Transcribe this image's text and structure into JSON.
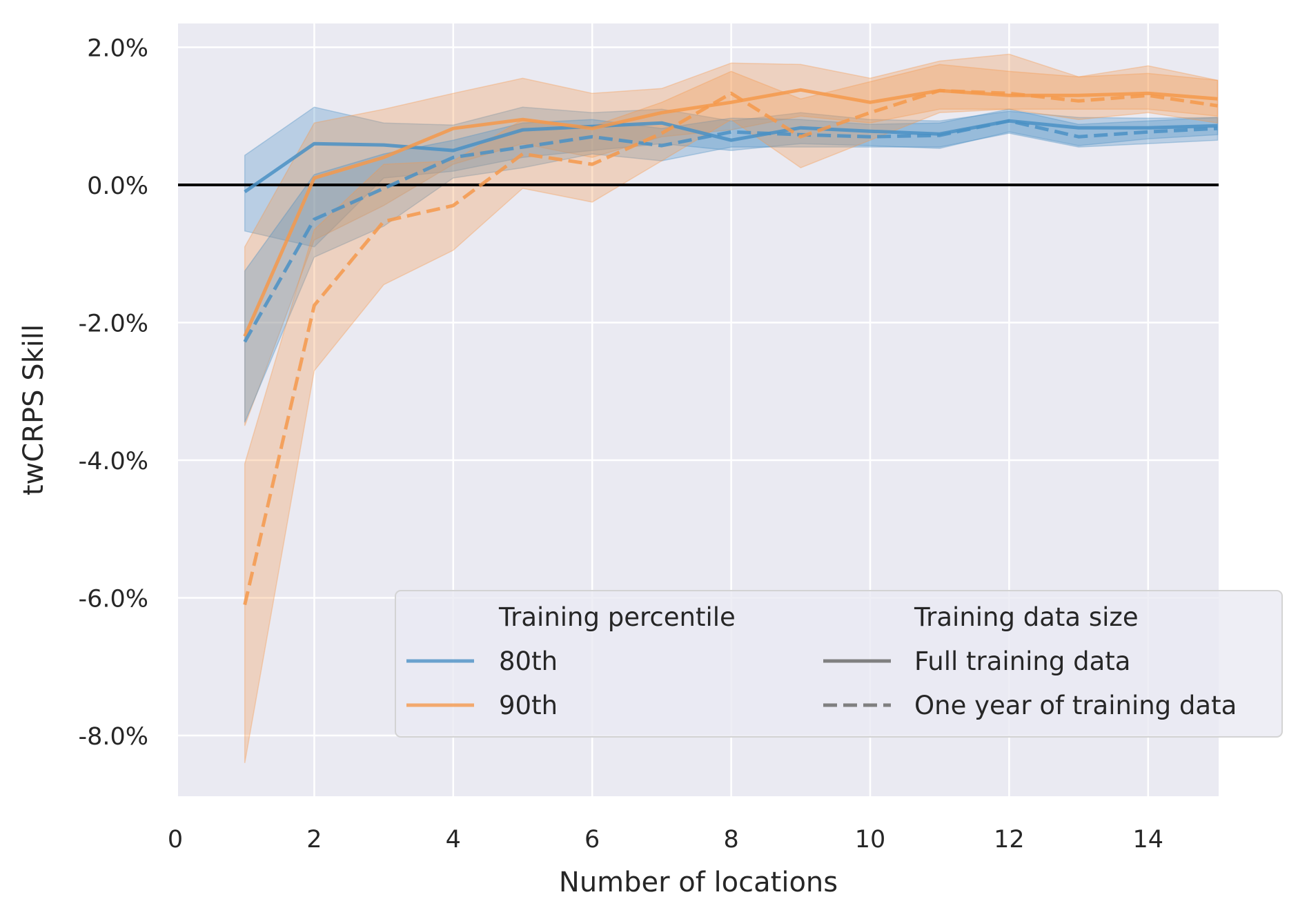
{
  "chart_data": {
    "type": "line",
    "title": "",
    "xlabel": "Number of locations",
    "ylabel": "twCRPS Skill",
    "xlim": [
      0,
      15
    ],
    "ylim": [
      -0.09,
      0.024
    ],
    "x_ticks": [
      0,
      2,
      4,
      6,
      8,
      10,
      12,
      14
    ],
    "x_tick_labels": [
      "0",
      "2",
      "4",
      "6",
      "8",
      "10",
      "12",
      "14"
    ],
    "y_ticks": [
      0.02,
      0.0,
      -0.02,
      -0.04,
      -0.06,
      -0.08
    ],
    "y_tick_labels": [
      "2.0%",
      "0.0%",
      "-2.0%",
      "-4.0%",
      "-6.0%",
      "-8.0%"
    ],
    "grid": true,
    "reference_line": 0.0,
    "legend_placement": "lower-right",
    "legend": {
      "percentile_title": "Training percentile",
      "percentile_items": [
        "80th",
        "90th"
      ],
      "size_title": "Training data size",
      "size_items": [
        "Full training data",
        "One year of training data"
      ]
    },
    "colors": {
      "80th": "#4a90c4",
      "90th": "#f5994b",
      "background": "#eaeaf2",
      "grid": "#ffffff",
      "reference": "#000000",
      "legend_style_line": "#808080"
    },
    "x": [
      1,
      2,
      3,
      4,
      5,
      6,
      7,
      8,
      9,
      10,
      11,
      12,
      13,
      14,
      15
    ],
    "series": [
      {
        "percentile": "80th",
        "data_size": "Full training data",
        "dash": "solid",
        "values": [
          -0.001,
          0.006,
          0.0058,
          0.005,
          0.008,
          0.0085,
          0.009,
          0.0065,
          0.0083,
          0.0078,
          0.0074,
          0.0093,
          0.0083,
          0.0083,
          0.0086
        ],
        "lower": [
          -0.0067,
          -0.009,
          0.001,
          0.002,
          0.004,
          0.005,
          0.006,
          0.005,
          0.006,
          0.0057,
          0.0053,
          0.0077,
          0.0057,
          0.0067,
          0.0073
        ],
        "upper": [
          0.0043,
          0.0113,
          0.009,
          0.0087,
          0.0113,
          0.0105,
          0.011,
          0.0093,
          0.0105,
          0.0095,
          0.0093,
          0.0107,
          0.0098,
          0.0097,
          0.0098
        ]
      },
      {
        "percentile": "90th",
        "data_size": "Full training data",
        "dash": "solid",
        "values": [
          -0.022,
          0.001,
          0.004,
          0.0082,
          0.0095,
          0.0082,
          0.0105,
          0.012,
          0.0138,
          0.012,
          0.0137,
          0.013,
          0.013,
          0.0133,
          0.0125
        ],
        "lower": [
          -0.035,
          -0.008,
          -0.003,
          0.003,
          0.006,
          0.004,
          0.007,
          0.008,
          0.01,
          0.009,
          0.011,
          0.011,
          0.011,
          0.011,
          0.01
        ],
        "upper": [
          -0.009,
          0.009,
          0.011,
          0.0133,
          0.0155,
          0.0133,
          0.014,
          0.0177,
          0.0175,
          0.0155,
          0.018,
          0.019,
          0.0157,
          0.0173,
          0.0152
        ]
      },
      {
        "percentile": "80th",
        "data_size": "One year of training data",
        "dash": "dashed",
        "values": [
          -0.0228,
          -0.005,
          -0.0005,
          0.004,
          0.0055,
          0.007,
          0.0057,
          0.0077,
          0.0073,
          0.007,
          0.0072,
          0.0093,
          0.007,
          0.0077,
          0.0082
        ],
        "lower": [
          -0.0345,
          -0.0105,
          -0.006,
          0.001,
          0.0025,
          0.0045,
          0.0035,
          0.0055,
          0.0055,
          0.0055,
          0.0055,
          0.0075,
          0.0055,
          0.006,
          0.0065
        ],
        "upper": [
          -0.0125,
          0.0015,
          0.0045,
          0.0065,
          0.009,
          0.0095,
          0.0082,
          0.0097,
          0.0095,
          0.0088,
          0.009,
          0.011,
          0.0088,
          0.0093,
          0.0098
        ]
      },
      {
        "percentile": "90th",
        "data_size": "One year of training data",
        "dash": "dashed",
        "values": [
          -0.061,
          -0.0175,
          -0.0053,
          -0.003,
          0.0045,
          0.003,
          0.0075,
          0.0133,
          0.007,
          0.0105,
          0.0137,
          0.0133,
          0.0122,
          0.013,
          0.0115
        ],
        "lower": [
          -0.084,
          -0.027,
          -0.0145,
          -0.0095,
          -0.0005,
          -0.0025,
          0.0035,
          0.0095,
          0.0025,
          0.0065,
          0.0105,
          0.011,
          0.0095,
          0.0105,
          0.009
        ],
        "upper": [
          -0.0405,
          -0.0065,
          0.003,
          0.0035,
          0.0095,
          0.0085,
          0.012,
          0.0165,
          0.0125,
          0.015,
          0.0175,
          0.0165,
          0.0157,
          0.0162,
          0.0152
        ]
      }
    ]
  }
}
